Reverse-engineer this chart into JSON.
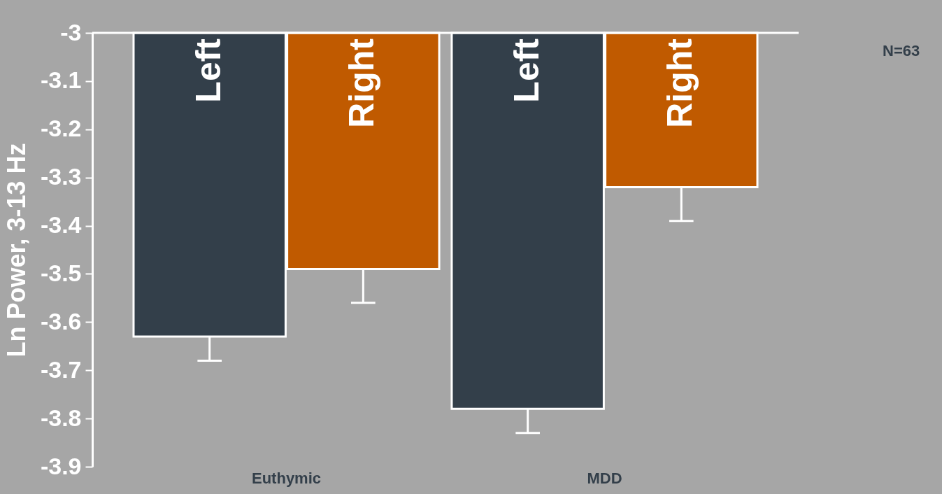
{
  "chart_data": {
    "type": "bar",
    "ylabel": "Ln Power, 3-13 Hz",
    "categories": [
      "Euthymic",
      "MDD"
    ],
    "series": [
      {
        "name": "Left",
        "color": "#333f4a",
        "values": [
          -3.63,
          -3.78
        ],
        "errors": [
          [
            -3.68,
            -3.63
          ],
          [
            -3.83,
            -3.78
          ]
        ]
      },
      {
        "name": "Right",
        "color": "#c05a00",
        "values": [
          -3.49,
          -3.32
        ],
        "errors": [
          [
            -3.56,
            -3.49
          ],
          [
            -3.39,
            -3.32
          ]
        ]
      }
    ],
    "ylim": [
      -3.9,
      -3
    ],
    "yticks": [
      -3.9,
      -3.8,
      -3.7,
      -3.6,
      -3.5,
      -3.4,
      -3.3,
      -3.2,
      -3.1,
      -3
    ],
    "grid": false,
    "legend": false,
    "annotations": [
      "N=63"
    ]
  }
}
